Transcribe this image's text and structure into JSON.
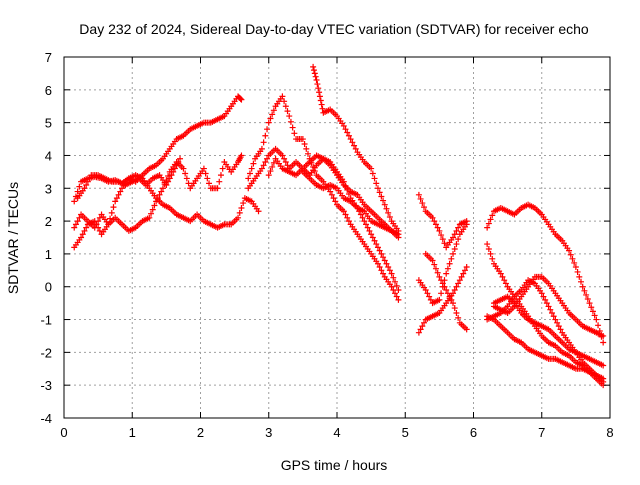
{
  "chart_data": {
    "type": "scatter",
    "title": "Day 232 of 2024, Sidereal Day-to-day VTEC variation (SDTVAR) for receiver echo",
    "xlabel": "GPS time / hours",
    "ylabel": "SDTVAR / TECUs",
    "xlim": [
      0,
      8
    ],
    "ylim": [
      -4,
      7
    ],
    "x_ticks": [
      "0",
      "1",
      "2",
      "3",
      "4",
      "5",
      "6",
      "7",
      "8"
    ],
    "y_ticks": [
      "-4",
      "-3",
      "-2",
      "-1",
      "0",
      "1",
      "2",
      "3",
      "4",
      "5",
      "6",
      "7"
    ],
    "grid": true,
    "marker": "+",
    "color": "#ff0000",
    "series": [
      {
        "x": [
          0.15,
          0.25,
          0.35,
          0.45,
          0.55,
          0.65,
          0.75,
          0.85,
          0.95,
          1.05,
          1.15,
          1.25,
          1.35,
          1.45,
          1.55,
          1.65,
          1.75,
          1.85,
          1.95,
          2.05,
          2.15,
          2.25,
          2.35,
          2.45,
          2.55,
          2.6
        ],
        "y": [
          2.6,
          3.2,
          3.3,
          3.35,
          3.3,
          3.2,
          3.25,
          3.15,
          3.3,
          3.2,
          3.4,
          3.6,
          3.7,
          3.9,
          4.2,
          4.5,
          4.6,
          4.8,
          4.9,
          5.0,
          5.0,
          5.1,
          5.2,
          5.5,
          5.8,
          5.7
        ]
      },
      {
        "x": [
          0.15,
          0.25,
          0.35,
          0.45,
          0.55,
          0.65,
          0.75,
          0.85,
          0.95,
          1.05,
          1.15,
          1.25,
          1.35,
          1.45,
          1.55,
          1.65,
          1.75,
          1.85,
          1.95,
          2.05,
          2.15,
          2.25,
          2.35,
          2.45,
          2.55,
          2.65,
          2.75,
          2.85
        ],
        "y": [
          1.8,
          2.2,
          2.0,
          1.8,
          2.2,
          1.9,
          2.6,
          3.0,
          3.3,
          3.4,
          3.3,
          3.0,
          2.7,
          2.5,
          2.4,
          2.2,
          2.1,
          2.0,
          2.2,
          2.0,
          1.9,
          1.8,
          1.9,
          1.9,
          2.1,
          2.7,
          2.6,
          2.3
        ]
      },
      {
        "x": [
          0.15,
          0.25,
          0.35,
          0.45,
          0.55,
          0.65,
          0.75,
          0.85,
          0.95,
          1.05,
          1.15,
          1.25,
          1.35,
          1.45,
          1.55,
          1.65,
          1.75,
          1.85,
          1.95,
          2.05,
          2.15,
          2.25,
          2.35,
          2.45,
          2.55,
          2.6
        ],
        "y": [
          1.2,
          1.5,
          1.9,
          2.0,
          1.6,
          1.9,
          2.1,
          1.9,
          1.7,
          1.8,
          2.0,
          2.1,
          2.6,
          3.0,
          3.5,
          3.8,
          3.6,
          3.0,
          3.3,
          3.6,
          3.0,
          3.0,
          3.8,
          3.5,
          3.8,
          4.0
        ]
      },
      {
        "x": [
          0.2,
          0.3,
          0.4,
          0.5,
          0.6,
          0.7,
          0.8,
          0.9,
          1.0,
          1.1,
          1.2,
          1.3,
          1.4,
          1.5,
          1.6,
          1.7
        ],
        "y": [
          2.7,
          3.0,
          3.4,
          3.4,
          3.3,
          3.2,
          3.2,
          3.1,
          3.2,
          3.3,
          3.1,
          3.3,
          3.4,
          3.1,
          3.5,
          3.9
        ]
      },
      {
        "x": [
          2.7,
          2.8,
          2.9,
          3.0,
          3.1,
          3.2,
          3.3,
          3.4,
          3.5,
          3.6,
          3.7,
          3.8,
          3.9,
          4.0,
          4.1,
          4.2,
          4.3,
          4.4,
          4.5,
          4.6,
          4.7,
          4.8,
          4.9
        ],
        "y": [
          3.3,
          3.9,
          4.2,
          5.0,
          5.5,
          5.8,
          5.2,
          4.5,
          4.5,
          3.9,
          3.4,
          3.2,
          2.9,
          2.5,
          2.3,
          1.9,
          1.6,
          1.3,
          1.0,
          0.7,
          0.3,
          0.0,
          -0.4
        ]
      },
      {
        "x": [
          2.7,
          2.8,
          2.9,
          3.0,
          3.1,
          3.2,
          3.3,
          3.4,
          3.5,
          3.6,
          3.7,
          3.8,
          3.9,
          4.0,
          4.1,
          4.2,
          4.3,
          4.4,
          4.5,
          4.6,
          4.7,
          4.8,
          4.9
        ],
        "y": [
          3.0,
          3.3,
          3.6,
          4.0,
          4.2,
          4.0,
          3.6,
          3.8,
          3.6,
          3.4,
          3.7,
          3.9,
          3.8,
          3.5,
          3.2,
          2.7,
          2.4,
          2.0,
          1.6,
          1.2,
          0.8,
          0.4,
          -0.1
        ]
      },
      {
        "x": [
          3.0,
          3.1,
          3.2,
          3.3,
          3.4,
          3.5,
          3.6,
          3.7,
          3.8,
          3.9,
          4.0,
          4.1,
          4.2,
          4.3,
          4.4,
          4.5,
          4.6,
          4.7,
          4.8,
          4.9
        ],
        "y": [
          3.4,
          3.9,
          3.6,
          3.5,
          3.4,
          3.6,
          3.8,
          4.0,
          3.9,
          3.7,
          3.4,
          3.1,
          2.9,
          2.8,
          2.5,
          2.3,
          2.1,
          1.9,
          1.7,
          1.5
        ]
      },
      {
        "x": [
          3.65,
          3.7,
          3.75,
          3.8,
          3.9,
          4.0,
          4.1,
          4.2,
          4.3,
          4.4,
          4.5,
          4.6,
          4.7,
          4.8,
          4.9
        ],
        "y": [
          6.7,
          6.3,
          5.8,
          5.3,
          5.4,
          5.2,
          4.9,
          4.5,
          4.1,
          3.8,
          3.6,
          3.0,
          2.5,
          2.0,
          1.7
        ]
      },
      {
        "x": [
          3.5,
          3.6,
          3.7,
          3.8,
          3.9,
          4.0,
          4.1,
          4.2,
          4.3,
          4.4,
          4.5,
          4.6,
          4.7,
          4.8,
          4.9
        ],
        "y": [
          3.5,
          3.3,
          3.1,
          3.0,
          3.1,
          3.0,
          2.7,
          2.6,
          2.4,
          2.3,
          2.0,
          1.9,
          1.8,
          1.7,
          1.6
        ]
      },
      {
        "x": [
          5.2,
          5.3,
          5.4,
          5.5,
          5.6,
          5.7,
          5.8,
          5.9
        ],
        "y": [
          2.8,
          2.3,
          2.1,
          1.7,
          1.2,
          1.5,
          1.9,
          2.0
        ]
      },
      {
        "x": [
          5.3,
          5.4,
          5.5,
          5.6,
          5.7,
          5.8,
          5.9
        ],
        "y": [
          1.0,
          0.8,
          0.3,
          -0.1,
          -0.5,
          -1.1,
          -1.3
        ]
      },
      {
        "x": [
          5.2,
          5.3,
          5.4,
          5.5,
          5.6,
          5.7,
          5.8,
          5.9
        ],
        "y": [
          -1.4,
          -1.0,
          -0.9,
          -0.8,
          -0.5,
          -0.2,
          0.2,
          0.6
        ]
      },
      {
        "x": [
          5.2,
          5.3,
          5.4,
          5.5,
          5.6,
          5.7,
          5.8,
          5.9
        ],
        "y": [
          0.2,
          -0.1,
          -0.5,
          -0.4,
          0.4,
          1.0,
          1.6,
          1.9
        ]
      },
      {
        "x": [
          6.2,
          6.3,
          6.4,
          6.5,
          6.6,
          6.7,
          6.8,
          6.9,
          7.0,
          7.1,
          7.2,
          7.3,
          7.4,
          7.5,
          7.6,
          7.7,
          7.8,
          7.9
        ],
        "y": [
          1.8,
          2.3,
          2.4,
          2.3,
          2.2,
          2.4,
          2.5,
          2.4,
          2.2,
          1.9,
          1.6,
          1.4,
          1.1,
          0.6,
          0.0,
          -0.5,
          -1.0,
          -1.7
        ]
      },
      {
        "x": [
          6.2,
          6.3,
          6.4,
          6.5,
          6.6,
          6.7,
          6.8,
          6.9,
          7.0,
          7.1,
          7.2,
          7.3,
          7.4,
          7.5,
          7.6,
          7.7,
          7.8,
          7.9
        ],
        "y": [
          1.3,
          0.7,
          0.4,
          0.0,
          -0.3,
          -0.6,
          -0.9,
          -1.2,
          -1.5,
          -1.7,
          -1.8,
          -2.0,
          -2.1,
          -2.3,
          -2.4,
          -2.6,
          -2.8,
          -3.0
        ]
      },
      {
        "x": [
          6.2,
          6.3,
          6.4,
          6.5,
          6.6,
          6.7,
          6.8,
          6.9,
          7.0,
          7.1,
          7.2,
          7.3,
          7.4,
          7.5,
          7.6,
          7.7,
          7.8,
          7.9
        ],
        "y": [
          -0.9,
          -1.0,
          -1.2,
          -1.4,
          -1.6,
          -1.7,
          -1.9,
          -2.0,
          -2.1,
          -2.2,
          -2.2,
          -2.3,
          -2.4,
          -2.5,
          -2.5,
          -2.6,
          -2.7,
          -2.8
        ]
      },
      {
        "x": [
          6.3,
          6.4,
          6.5,
          6.6,
          6.7,
          6.8,
          6.9,
          7.0,
          7.1,
          7.2,
          7.3,
          7.4,
          7.5,
          7.6,
          7.7,
          7.8,
          7.9
        ],
        "y": [
          -0.6,
          -0.7,
          -0.8,
          -0.6,
          -0.3,
          0.0,
          0.3,
          0.3,
          0.1,
          -0.2,
          -0.5,
          -0.8,
          -1.0,
          -1.2,
          -1.3,
          -1.4,
          -1.5
        ]
      },
      {
        "x": [
          6.3,
          6.4,
          6.5,
          6.6,
          6.7,
          6.8,
          6.9,
          7.0,
          7.1,
          7.2,
          7.3,
          7.4,
          7.5,
          7.6,
          7.7,
          7.8,
          7.9
        ],
        "y": [
          -0.5,
          -0.4,
          -0.3,
          -0.5,
          -0.8,
          -1.0,
          -1.1,
          -1.2,
          -1.3,
          -1.5,
          -1.7,
          -1.9,
          -2.0,
          -2.1,
          -2.2,
          -2.3,
          -2.4
        ]
      },
      {
        "x": [
          6.2,
          6.3,
          6.4,
          6.5,
          6.6,
          6.7,
          6.8,
          6.9,
          7.0,
          7.1,
          7.2,
          7.3,
          7.4,
          7.5,
          7.6,
          7.7,
          7.8,
          7.9
        ],
        "y": [
          -1.0,
          -0.9,
          -0.8,
          -0.6,
          -0.3,
          -0.1,
          0.2,
          0.1,
          -0.2,
          -0.6,
          -1.0,
          -1.4,
          -1.7,
          -2.0,
          -2.3,
          -2.5,
          -2.7,
          -2.9
        ]
      }
    ]
  }
}
